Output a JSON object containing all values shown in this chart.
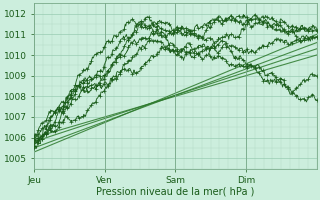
{
  "xlabel": "Pression niveau de la mer( hPa )",
  "ylim": [
    1004.6,
    1012.4
  ],
  "xlim": [
    0,
    96
  ],
  "xtick_positions": [
    0,
    24,
    48,
    72
  ],
  "xtick_labels": [
    "Jeu",
    "Ven",
    "Sam",
    "Dim"
  ],
  "ytick_positions": [
    1005,
    1006,
    1007,
    1008,
    1009,
    1010,
    1011,
    1012
  ],
  "bg_color": "#cceedd",
  "grid_minor_color": "#b0d8c4",
  "grid_major_color": "#99ccb3",
  "line_color": "#1a5c1a",
  "straight_color": "#2d7a2d",
  "straight_lines": [
    [
      1006.0,
      1010.0
    ],
    [
      1005.8,
      1010.3
    ],
    [
      1005.5,
      1010.6
    ],
    [
      1005.3,
      1011.0
    ]
  ],
  "forecast_seeds": [
    10,
    20,
    30,
    40,
    50,
    60
  ],
  "forecast_starts": [
    1006.0,
    1005.8,
    1005.6,
    1006.1,
    1005.9,
    1005.5
  ],
  "forecast_peaks": [
    1011.0,
    1011.2,
    1010.8,
    1011.1,
    1010.9,
    1011.3
  ],
  "forecast_peak_times": [
    38,
    36,
    40,
    34,
    42,
    32
  ],
  "forecast_ends": [
    1010.3,
    1010.5,
    1010.2,
    1010.6,
    1010.1,
    1010.8
  ]
}
